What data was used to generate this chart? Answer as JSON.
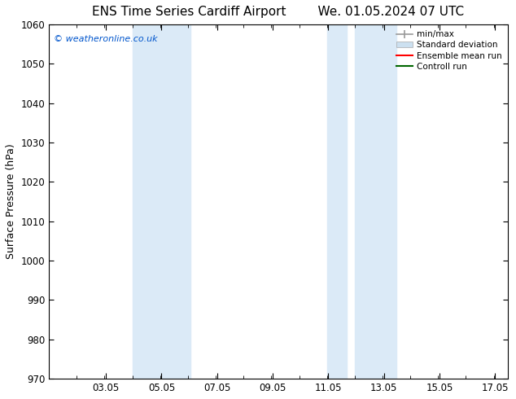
{
  "title": "ENS Time Series Cardiff Airport        We. 01.05.2024 07 UTC",
  "ylabel": "Surface Pressure (hPa)",
  "xlim": [
    1.0,
    17.5
  ],
  "ylim": [
    970,
    1060
  ],
  "yticks": [
    970,
    980,
    990,
    1000,
    1010,
    1020,
    1030,
    1040,
    1050,
    1060
  ],
  "xticks": [
    3.05,
    5.05,
    7.05,
    9.05,
    11.05,
    13.05,
    15.05,
    17.05
  ],
  "xticklabels": [
    "03.05",
    "05.05",
    "07.05",
    "09.05",
    "11.05",
    "13.05",
    "15.05",
    "17.05"
  ],
  "shaded_regions": [
    {
      "xmin": 4.0,
      "xmax": 6.1,
      "color": "#dbeaf7"
    },
    {
      "xmin": 11.0,
      "xmax": 11.7,
      "color": "#dbeaf7"
    },
    {
      "xmin": 12.0,
      "xmax": 13.5,
      "color": "#dbeaf7"
    }
  ],
  "watermark_text": "© weatheronline.co.uk",
  "watermark_color": "#0055cc",
  "background_color": "#ffffff",
  "legend_entries": [
    {
      "label": "min/max",
      "color": "#999999",
      "lw": 1.2
    },
    {
      "label": "Standard deviation",
      "color": "#cce0f0",
      "lw": 8
    },
    {
      "label": "Ensemble mean run",
      "color": "#ff0000",
      "lw": 1.5
    },
    {
      "label": "Controll run",
      "color": "#006600",
      "lw": 1.5
    }
  ],
  "title_fontsize": 11,
  "axis_fontsize": 9,
  "tick_fontsize": 8.5,
  "minor_xtick_interval": 1.0
}
